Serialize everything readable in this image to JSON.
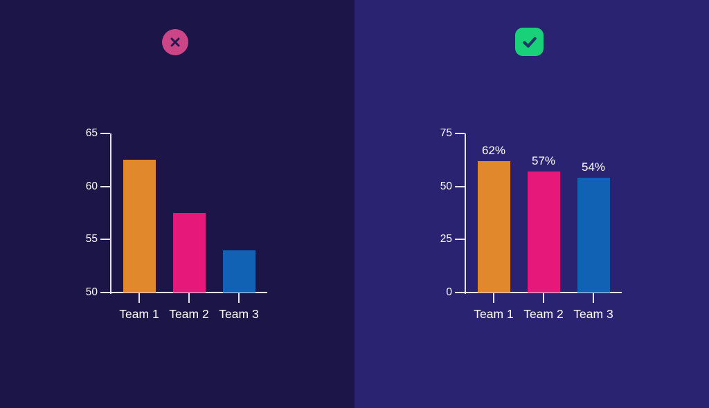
{
  "panels": {
    "misleading": {
      "background": "#1c1548",
      "badge_icon": "cross-icon",
      "badge_color": "#cb4587",
      "badge_glyph_color": "#221b50"
    },
    "honest": {
      "background": "#2a2371",
      "badge_icon": "check-icon",
      "badge_color": "#19d179",
      "badge_glyph_color": "#1b3a69"
    }
  },
  "chart_data": [
    {
      "type": "bar",
      "title": "",
      "categories": [
        "Team 1",
        "Team 2",
        "Team 3"
      ],
      "values": [
        62.5,
        57.5,
        54
      ],
      "data_labels": null,
      "bar_colors": [
        "#e1882c",
        "#e6197a",
        "#1161b5"
      ],
      "ylim": [
        50,
        65
      ],
      "yticks": [
        65,
        60,
        55,
        50
      ],
      "ytick_labels": [
        "65",
        "60",
        "55",
        "50"
      ],
      "grid": false,
      "legend": null,
      "axis_color": "#e6e4f6",
      "text_color": "#ffffff"
    },
    {
      "type": "bar",
      "title": "",
      "categories": [
        "Team 1",
        "Team 2",
        "Team 3"
      ],
      "values": [
        62,
        57,
        54
      ],
      "data_labels": [
        "62%",
        "57%",
        "54%"
      ],
      "bar_colors": [
        "#e1882c",
        "#e6197a",
        "#1161b5"
      ],
      "ylim": [
        0,
        75
      ],
      "yticks": [
        75,
        50,
        25,
        0
      ],
      "ytick_labels": [
        "75",
        "50",
        "25",
        "0"
      ],
      "grid": false,
      "legend": null,
      "axis_color": "#e6e4f6",
      "text_color": "#ffffff"
    }
  ]
}
